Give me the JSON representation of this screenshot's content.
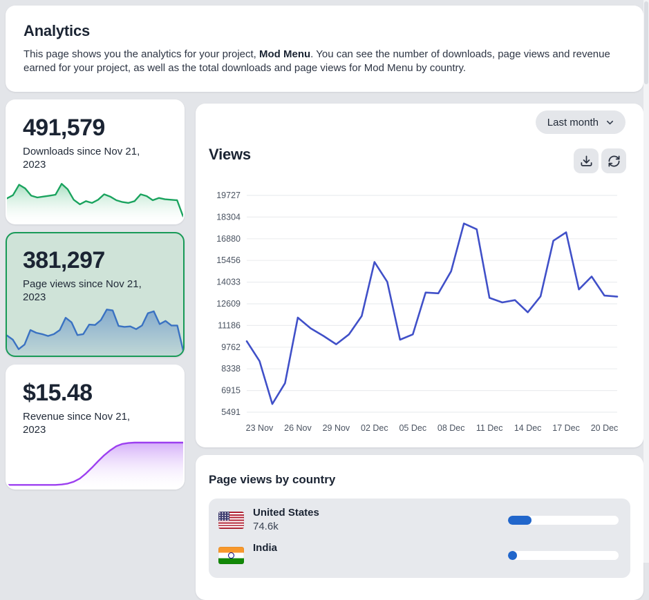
{
  "header": {
    "title": "Analytics",
    "description_before": "This page shows you the analytics for your project, ",
    "description_bold": "Mod Menu",
    "description_after": ". You can see the number of downloads, page views and revenue earned for your project, as well as the total downloads and page views for Mod Menu by country."
  },
  "stats": [
    {
      "value": "491,579",
      "label": "Downloads since Nov 21, 2023",
      "selected": false
    },
    {
      "value": "381,297",
      "label": "Page views since Nov 21, 2023",
      "selected": true
    },
    {
      "value": "$15.48",
      "label": "Revenue since Nov 21, 2023",
      "selected": false
    }
  ],
  "views_panel": {
    "title": "Views",
    "range_selector": {
      "label": "Last month"
    },
    "buttons": [
      {
        "icon": "download-icon"
      },
      {
        "icon": "refresh-icon"
      }
    ]
  },
  "country_panel": {
    "title": "Page views by country",
    "bar_color": "#2166cb",
    "rows": [
      {
        "country": "United States",
        "value": "74.6k",
        "flag": "us",
        "bar_pct": 21
      },
      {
        "country": "India",
        "value": "",
        "flag": "in",
        "bar_pct": 8
      }
    ]
  },
  "chart_data": [
    {
      "id": "views-line",
      "type": "line",
      "title": "Views",
      "x_dates": [
        "22 Nov",
        "23 Nov",
        "24 Nov",
        "25 Nov",
        "26 Nov",
        "27 Nov",
        "28 Nov",
        "29 Nov",
        "30 Nov",
        "01 Dec",
        "02 Dec",
        "03 Dec",
        "04 Dec",
        "05 Dec",
        "06 Dec",
        "07 Dec",
        "08 Dec",
        "09 Dec",
        "10 Dec",
        "11 Dec",
        "12 Dec",
        "13 Dec",
        "14 Dec",
        "15 Dec",
        "16 Dec",
        "17 Dec",
        "18 Dec",
        "19 Dec",
        "20 Dec",
        "21 Dec"
      ],
      "values": [
        10150,
        8850,
        6030,
        7400,
        11700,
        11000,
        10500,
        9950,
        10600,
        11800,
        15350,
        14050,
        10250,
        10600,
        13350,
        13300,
        14750,
        17880,
        17500,
        13000,
        12700,
        12850,
        12050,
        13100,
        16750,
        17300,
        13550,
        14400,
        13150,
        13080
      ],
      "y_ticks": [
        5491,
        6915,
        8338,
        9762,
        11186,
        12609,
        14033,
        15456,
        16880,
        18304,
        19727
      ],
      "ylim": [
        5491,
        19727
      ],
      "x_tick_labels": [
        "23 Nov",
        "26 Nov",
        "29 Nov",
        "02 Dec",
        "05 Dec",
        "08 Dec",
        "11 Dec",
        "14 Dec",
        "17 Dec",
        "20 Dec"
      ],
      "x_tick_start_index": 1,
      "x_tick_step": 3,
      "grid": "horizontal",
      "legend": "none",
      "line_color": "#4050c8"
    },
    {
      "id": "downloads-sparkline",
      "type": "area",
      "values": [
        48,
        55,
        78,
        70,
        54,
        50,
        52,
        54,
        56,
        80,
        68,
        45,
        35,
        42,
        38,
        45,
        57,
        52,
        44,
        40,
        38,
        42,
        57,
        53,
        44,
        49,
        46,
        45,
        44,
        8
      ],
      "stroke": "#1aa35e",
      "fill_top": "rgba(150,216,180,0.85)",
      "fill_bottom": "rgba(255,255,255,0.15)"
    },
    {
      "id": "pageviews-sparkline",
      "type": "area",
      "values": [
        38,
        29,
        8,
        18,
        50,
        44,
        41,
        37,
        41,
        50,
        77,
        67,
        39,
        41,
        62,
        61,
        72,
        95,
        93,
        59,
        57,
        58,
        52,
        60,
        87,
        91,
        63,
        70,
        60,
        60,
        5
      ],
      "stroke": "#3a72c2",
      "fill_top": "rgba(58,114,194,0.50)",
      "fill_bottom": "rgba(58,114,194,0.10)"
    },
    {
      "id": "revenue-sparkline",
      "type": "area",
      "values": [
        1,
        1,
        1,
        1,
        1,
        1,
        1,
        1,
        1,
        2,
        4,
        8,
        15,
        26,
        39,
        53,
        66,
        77,
        86,
        91,
        93,
        94,
        94,
        94,
        94,
        94,
        94,
        94,
        94,
        94
      ],
      "stroke": "#9c3ff0",
      "fill_top": "rgba(205,160,248,0.85)",
      "fill_bottom": "rgba(255,255,255,0.15)"
    },
    {
      "id": "country-views",
      "type": "table",
      "columns": [
        "country",
        "page_views",
        "share_pct"
      ],
      "rows": [
        [
          "United States",
          "74.6k",
          21
        ],
        [
          "India",
          "",
          8
        ]
      ]
    }
  ]
}
